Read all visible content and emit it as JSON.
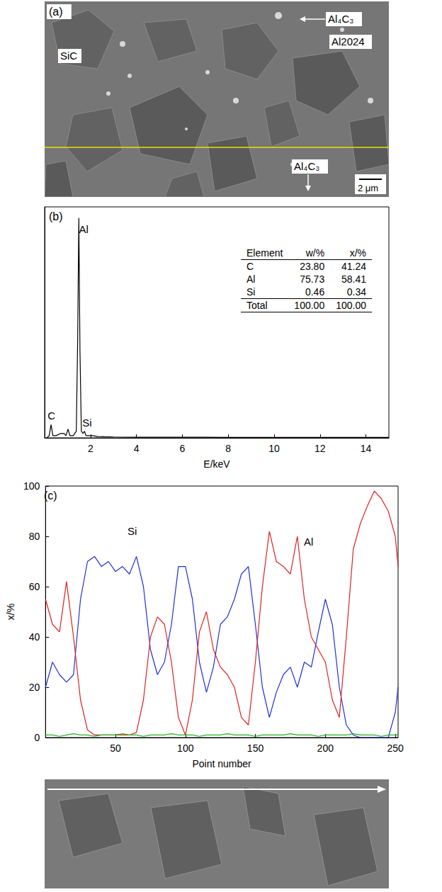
{
  "panel_a": {
    "label": "(a)",
    "labels": [
      "SiC",
      "Al₄C₃",
      "Al2024",
      "Al₄C₃"
    ],
    "scale_bar": "2 μm"
  },
  "chart_data": [
    {
      "panel": "(b)",
      "type": "line",
      "x_label": "E/keV",
      "x": [
        0.1,
        0.2,
        0.28,
        0.36,
        0.5,
        0.7,
        0.85,
        0.93,
        1.02,
        1.1,
        1.25,
        1.38,
        1.44,
        1.49,
        1.54,
        1.6,
        1.68,
        1.74,
        1.8,
        1.95,
        2.1,
        2.3,
        2.6,
        3,
        4,
        5,
        6,
        7,
        8,
        9,
        10,
        11,
        12,
        13,
        14,
        15
      ],
      "series": [
        {
          "color": "#000000",
          "values": [
            0,
            1,
            6,
            1,
            1,
            2,
            2,
            1,
            4,
            1,
            1,
            3,
            45,
            100,
            40,
            3,
            2,
            3,
            1,
            1,
            1,
            0.6,
            0.5,
            0.4,
            0.3,
            0.3,
            0.3,
            0.3,
            0.2,
            0.2,
            0.2,
            0.2,
            0.2,
            0.2,
            0.2,
            0.2
          ]
        }
      ],
      "xlim": [
        0,
        15
      ],
      "xticks": [
        2,
        4,
        6,
        8,
        10,
        12,
        14
      ],
      "ylim": [
        0,
        105
      ],
      "tick_labels": "x",
      "annotations": [
        {
          "text": "Al",
          "x": 1.7,
          "y": 95
        },
        {
          "text": "C",
          "x": 0.3,
          "y": 10
        },
        {
          "text": "Si",
          "x": 1.85,
          "y": 7
        }
      ],
      "table": {
        "header": [
          "Element",
          "w/%",
          "x/%"
        ],
        "rows": [
          [
            "C",
            "23.80",
            "41.24"
          ],
          [
            "Al",
            "75.73",
            "58.41"
          ],
          [
            "Si",
            "0.46",
            "0.34"
          ],
          [
            "Total",
            "100.00",
            "100.00"
          ]
        ]
      }
    },
    {
      "panel": "(c)",
      "type": "line",
      "x_label": "Point number",
      "y_label": "x/%",
      "x": [
        0,
        5,
        10,
        15,
        20,
        25,
        30,
        35,
        40,
        45,
        50,
        55,
        60,
        65,
        70,
        75,
        80,
        85,
        90,
        95,
        100,
        105,
        110,
        115,
        120,
        125,
        130,
        135,
        140,
        145,
        150,
        155,
        160,
        165,
        170,
        175,
        180,
        185,
        190,
        195,
        200,
        205,
        210,
        215,
        220,
        225,
        230,
        235,
        240,
        245,
        250,
        252
      ],
      "series": [
        {
          "name": "Si",
          "color": "#1f2fd8",
          "values": [
            20,
            30,
            25,
            22,
            25,
            55,
            70,
            72,
            68,
            70,
            66,
            68,
            65,
            72,
            60,
            35,
            25,
            30,
            45,
            68,
            68,
            55,
            30,
            18,
            28,
            45,
            48,
            55,
            65,
            68,
            45,
            20,
            8,
            18,
            25,
            28,
            20,
            30,
            28,
            42,
            55,
            45,
            20,
            5,
            1,
            0,
            0,
            0,
            0,
            0,
            10,
            20
          ]
        },
        {
          "name": "Al",
          "color": "#e02020",
          "values": [
            55,
            45,
            42,
            62,
            40,
            15,
            3,
            1,
            1,
            1,
            1,
            1,
            1,
            2,
            15,
            40,
            48,
            45,
            30,
            8,
            1,
            15,
            42,
            50,
            35,
            28,
            25,
            20,
            8,
            5,
            30,
            60,
            82,
            70,
            68,
            65,
            80,
            55,
            40,
            35,
            30,
            15,
            8,
            40,
            75,
            85,
            92,
            98,
            95,
            90,
            80,
            68
          ]
        },
        {
          "color": "#22b022",
          "values": [
            1,
            1,
            0.5,
            1,
            1.5,
            1,
            1,
            0.5,
            1,
            1,
            1,
            1.5,
            1,
            1,
            0.5,
            1,
            1,
            1,
            1.5,
            1,
            1,
            1,
            0.5,
            1,
            1,
            1,
            1.5,
            1,
            1,
            1,
            0.5,
            1,
            1,
            1,
            1,
            1.5,
            1,
            1,
            1,
            0.5,
            1,
            1,
            1,
            1,
            1.5,
            1,
            1,
            1,
            0.5,
            1,
            1,
            1
          ]
        }
      ],
      "xlim": [
        0,
        252
      ],
      "xticks": [
        50,
        100,
        150,
        200,
        250
      ],
      "ylim": [
        0,
        100
      ],
      "yticks": [
        0,
        20,
        40,
        60,
        80,
        100
      ],
      "annotations": [
        {
          "text": "Si",
          "x": 62,
          "y": 82
        },
        {
          "text": "Al",
          "x": 188,
          "y": 78
        }
      ]
    }
  ]
}
